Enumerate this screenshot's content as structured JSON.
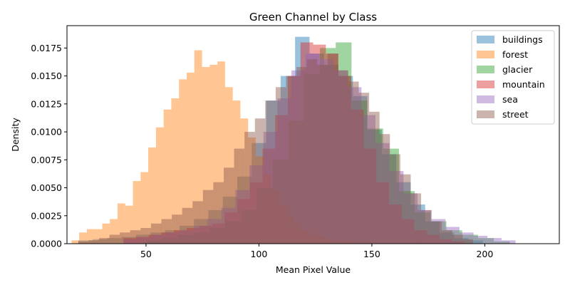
{
  "chart_data": {
    "type": "histogram",
    "title": "Green Channel by Class",
    "xlabel": "Mean Pixel Value",
    "ylabel": "Density",
    "xlim": [
      15,
      233
    ],
    "ylim": [
      0,
      0.0195
    ],
    "xticks": [
      50,
      100,
      150,
      200
    ],
    "yticks": [
      0.0,
      0.0025,
      0.005,
      0.0075,
      0.01,
      0.0125,
      0.015,
      0.0175
    ],
    "ytick_labels": [
      "0.0000",
      "0.0025",
      "0.0050",
      "0.0075",
      "0.0100",
      "0.0125",
      "0.0150",
      "0.0175"
    ],
    "grid": false,
    "legend_position": "top-right",
    "bar_opacity": 0.45,
    "series": [
      {
        "name": "buildings",
        "color": "#1f77b4",
        "bin_start": 20,
        "bin_width": 6.4,
        "values": [
          0.0003,
          0.0004,
          0.0005,
          0.0006,
          0.0008,
          0.001,
          0.0012,
          0.0016,
          0.0022,
          0.003,
          0.0042,
          0.006,
          0.009,
          0.0128,
          0.015,
          0.0185,
          0.017,
          0.016,
          0.015,
          0.0132,
          0.0102,
          0.008,
          0.0055,
          0.0035,
          0.002,
          0.001,
          0.0005,
          0.0003
        ]
      },
      {
        "name": "forest",
        "color": "#ff7f0e",
        "bin_start": 17,
        "bin_width": 3.4,
        "values": [
          0.0003,
          0.001,
          0.0013,
          0.0013,
          0.0018,
          0.0022,
          0.0036,
          0.0034,
          0.0056,
          0.0064,
          0.0086,
          0.0104,
          0.012,
          0.013,
          0.0147,
          0.0153,
          0.0173,
          0.0158,
          0.016,
          0.0163,
          0.014,
          0.0128,
          0.0112,
          0.0095,
          0.0078,
          0.0062,
          0.0048,
          0.0035,
          0.0025,
          0.0018,
          0.0012,
          0.0008,
          0.0006,
          0.0004,
          0.0003,
          0.0002,
          0.0002,
          0.0001,
          0.0001,
          0.0001
        ]
      },
      {
        "name": "glacier",
        "color": "#2ca02c",
        "bin_start": 50,
        "bin_width": 7,
        "values": [
          0.0003,
          0.0005,
          0.0008,
          0.001,
          0.0014,
          0.002,
          0.003,
          0.005,
          0.0075,
          0.011,
          0.0152,
          0.0175,
          0.018,
          0.0128,
          0.0103,
          0.0085,
          0.0047,
          0.0028,
          0.002,
          0.0012,
          0.0008,
          0.0005,
          0.0002
        ]
      },
      {
        "name": "mountain",
        "color": "#d62728",
        "bin_start": 40,
        "bin_width": 5.6,
        "values": [
          0.0005,
          0.0006,
          0.0008,
          0.001,
          0.0012,
          0.0014,
          0.0016,
          0.0018,
          0.0028,
          0.004,
          0.0055,
          0.0085,
          0.0115,
          0.015,
          0.018,
          0.0178,
          0.017,
          0.015,
          0.012,
          0.0085,
          0.0055,
          0.0035,
          0.0022,
          0.0012,
          0.0008,
          0.0004,
          0.0002
        ]
      },
      {
        "name": "sea",
        "color": "#9467bd",
        "bin_start": 40,
        "bin_width": 6.2,
        "values": [
          0.0004,
          0.0006,
          0.0008,
          0.001,
          0.0012,
          0.0016,
          0.0022,
          0.0032,
          0.0048,
          0.007,
          0.01,
          0.013,
          0.0155,
          0.017,
          0.0165,
          0.0155,
          0.014,
          0.0115,
          0.009,
          0.0065,
          0.0045,
          0.003,
          0.0022,
          0.0015,
          0.001,
          0.0007,
          0.0005,
          0.0003
        ]
      },
      {
        "name": "street",
        "color": "#8c564b",
        "bin_start": 20,
        "bin_width": 4.6,
        "values": [
          0.0002,
          0.0003,
          0.0005,
          0.0008,
          0.001,
          0.0012,
          0.0014,
          0.0018,
          0.0022,
          0.0026,
          0.0032,
          0.0038,
          0.0048,
          0.0055,
          0.0068,
          0.0085,
          0.01,
          0.0112,
          0.0128,
          0.014,
          0.015,
          0.0158,
          0.0165,
          0.016,
          0.017,
          0.0155,
          0.0145,
          0.0135,
          0.0118,
          0.0098,
          0.008,
          0.0062,
          0.0045,
          0.003,
          0.002,
          0.0012,
          0.0008,
          0.0004
        ]
      }
    ]
  }
}
